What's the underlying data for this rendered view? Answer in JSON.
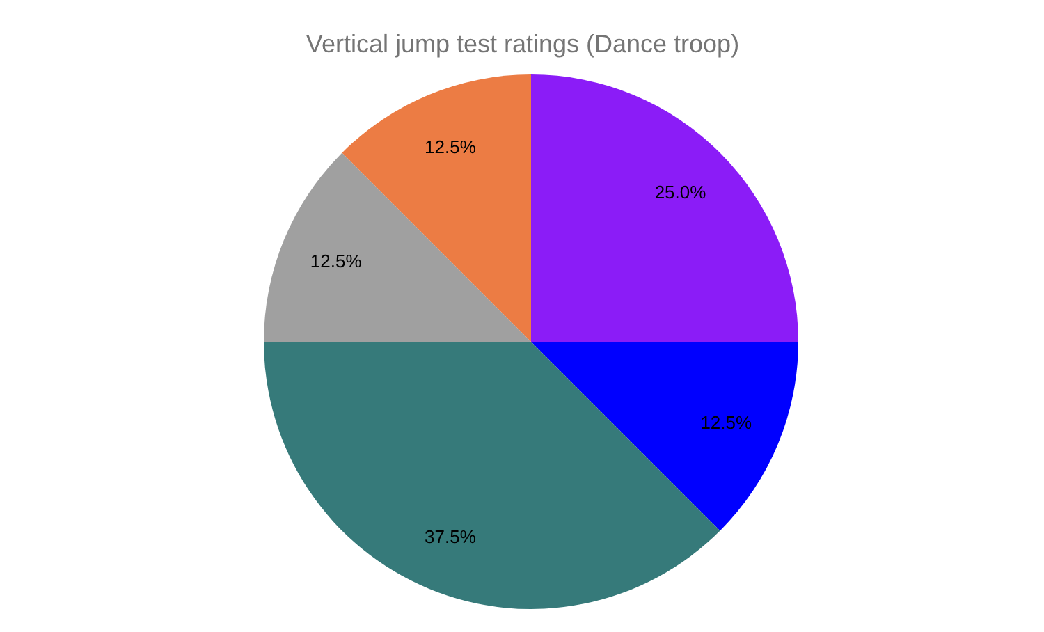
{
  "chart_data": {
    "type": "pie",
    "title": "Vertical jump test ratings (Dance troop)",
    "categories": [
      null,
      null,
      null,
      null,
      null
    ],
    "values": [
      25,
      12.5,
      37.5,
      12.5,
      12.5
    ],
    "value_labels": [
      "25.0%",
      "12.5%",
      "37.5%",
      "12.5%",
      "12.5%"
    ],
    "colors": [
      "#8b1cf7",
      "#0000ff",
      "#367a7a",
      "#a0a0a0",
      "#ec7c44"
    ]
  }
}
